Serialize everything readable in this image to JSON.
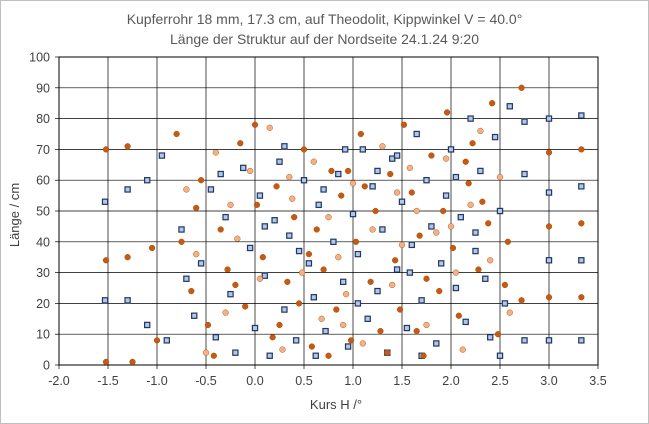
{
  "chart_data": {
    "type": "scatter",
    "title": "Kupferrohr 18 mm, 17.3 cm, auf Theodolit,  Kippwinkel V = 40.0°",
    "subtitle": "Länge der Struktur auf der Nordseite  24.1.24 9:20",
    "xlabel": "Kurs H /°",
    "ylabel": "Länge / cm",
    "xlim": [
      -2.0,
      3.5
    ],
    "ylim": [
      0,
      100
    ],
    "x_ticks": [
      "-2.0",
      "-1.5",
      "-1.0",
      "-0.5",
      "0.0",
      "0.5",
      "1.0",
      "1.5",
      "2.0",
      "2.5",
      "3.0",
      "3.5"
    ],
    "y_ticks": [
      "0",
      "10",
      "20",
      "30",
      "40",
      "50",
      "60",
      "70",
      "80",
      "90",
      "100"
    ],
    "grid": true,
    "legend": "none",
    "series": [
      {
        "marker": "square",
        "color": "#1f3864",
        "points": [
          [
            -1.53,
            53
          ],
          [
            -1.53,
            21
          ],
          [
            -1.3,
            57
          ],
          [
            -1.3,
            21
          ],
          [
            -1.1,
            60
          ],
          [
            -1.1,
            13
          ],
          [
            -0.95,
            68
          ],
          [
            -0.9,
            8
          ],
          [
            -0.75,
            44
          ],
          [
            -0.7,
            28
          ],
          [
            -0.62,
            16
          ],
          [
            -0.55,
            33
          ],
          [
            -0.45,
            57
          ],
          [
            -0.4,
            9
          ],
          [
            -0.3,
            48
          ],
          [
            -0.25,
            23
          ],
          [
            -0.2,
            4
          ],
          [
            -0.12,
            64
          ],
          [
            -0.05,
            38
          ],
          [
            0.0,
            12
          ],
          [
            0.05,
            55
          ],
          [
            0.1,
            29
          ],
          [
            0.15,
            3
          ],
          [
            0.2,
            47
          ],
          [
            0.25,
            66
          ],
          [
            0.3,
            18
          ],
          [
            0.35,
            42
          ],
          [
            0.42,
            8
          ],
          [
            0.5,
            60
          ],
          [
            0.55,
            33
          ],
          [
            0.6,
            22
          ],
          [
            0.65,
            52
          ],
          [
            0.72,
            11
          ],
          [
            0.8,
            40
          ],
          [
            0.85,
            62
          ],
          [
            0.9,
            27
          ],
          [
            0.95,
            6
          ],
          [
            1.0,
            49
          ],
          [
            1.05,
            36
          ],
          [
            1.1,
            70
          ],
          [
            1.15,
            15
          ],
          [
            1.2,
            58
          ],
          [
            1.25,
            24
          ],
          [
            1.3,
            44
          ],
          [
            1.35,
            4
          ],
          [
            1.4,
            67
          ],
          [
            1.45,
            31
          ],
          [
            1.5,
            53
          ],
          [
            1.55,
            12
          ],
          [
            1.6,
            39
          ],
          [
            1.65,
            75
          ],
          [
            1.7,
            21
          ],
          [
            1.75,
            60
          ],
          [
            1.8,
            45
          ],
          [
            1.85,
            7
          ],
          [
            1.9,
            33
          ],
          [
            1.95,
            55
          ],
          [
            2.0,
            70
          ],
          [
            2.05,
            25
          ],
          [
            2.1,
            48
          ],
          [
            2.15,
            14
          ],
          [
            2.2,
            80
          ],
          [
            2.25,
            37
          ],
          [
            2.3,
            63
          ],
          [
            2.35,
            28
          ],
          [
            2.4,
            9
          ],
          [
            2.45,
            74
          ],
          [
            2.5,
            50
          ],
          [
            2.55,
            20
          ],
          [
            2.6,
            84
          ],
          [
            2.75,
            79
          ],
          [
            2.75,
            62
          ],
          [
            2.75,
            8
          ],
          [
            3.0,
            80
          ],
          [
            3.0,
            56
          ],
          [
            3.0,
            34
          ],
          [
            3.0,
            8
          ],
          [
            3.33,
            81
          ],
          [
            3.33,
            58
          ],
          [
            3.33,
            34
          ],
          [
            3.33,
            8
          ],
          [
            0.3,
            71
          ],
          [
            0.45,
            37
          ],
          [
            0.7,
            57
          ],
          [
            1.05,
            20
          ],
          [
            1.45,
            68
          ],
          [
            1.7,
            3
          ],
          [
            2.25,
            43
          ],
          [
            2.5,
            3
          ],
          [
            1.25,
            63
          ],
          [
            0.1,
            45
          ],
          [
            -0.35,
            62
          ],
          [
            0.62,
            3
          ],
          [
            0.92,
            70
          ],
          [
            1.58,
            30
          ],
          [
            2.05,
            61
          ]
        ]
      },
      {
        "marker": "circle",
        "color": "#c55a11",
        "points": [
          [
            -1.52,
            70
          ],
          [
            -1.52,
            34
          ],
          [
            -1.52,
            1
          ],
          [
            -1.3,
            71
          ],
          [
            -1.3,
            35
          ],
          [
            -1.25,
            1
          ],
          [
            -1.05,
            38
          ],
          [
            -1.0,
            8
          ],
          [
            -0.8,
            75
          ],
          [
            -0.75,
            40
          ],
          [
            -0.65,
            24
          ],
          [
            -0.55,
            60
          ],
          [
            -0.48,
            13
          ],
          [
            -0.35,
            44
          ],
          [
            -0.28,
            31
          ],
          [
            -0.15,
            72
          ],
          [
            -0.1,
            19
          ],
          [
            0.02,
            52
          ],
          [
            0.08,
            35
          ],
          [
            0.18,
            9
          ],
          [
            0.22,
            58
          ],
          [
            0.33,
            27
          ],
          [
            0.4,
            48
          ],
          [
            0.45,
            20
          ],
          [
            0.5,
            70
          ],
          [
            0.58,
            6
          ],
          [
            0.63,
            44
          ],
          [
            0.7,
            31
          ],
          [
            0.78,
            63
          ],
          [
            0.83,
            18
          ],
          [
            0.88,
            55
          ],
          [
            0.98,
            8
          ],
          [
            1.03,
            40
          ],
          [
            1.08,
            75
          ],
          [
            1.18,
            27
          ],
          [
            1.23,
            50
          ],
          [
            1.28,
            11
          ],
          [
            1.38,
            62
          ],
          [
            1.43,
            34
          ],
          [
            1.48,
            18
          ],
          [
            1.6,
            56
          ],
          [
            1.68,
            42
          ],
          [
            1.72,
            3
          ],
          [
            1.8,
            68
          ],
          [
            1.88,
            24
          ],
          [
            1.92,
            50
          ],
          [
            2.02,
            38
          ],
          [
            2.08,
            16
          ],
          [
            2.18,
            59
          ],
          [
            2.22,
            72
          ],
          [
            2.28,
            31
          ],
          [
            2.38,
            46
          ],
          [
            2.42,
            85
          ],
          [
            2.48,
            10
          ],
          [
            2.58,
            40
          ],
          [
            2.72,
            90
          ],
          [
            2.72,
            21
          ],
          [
            3.0,
            69
          ],
          [
            3.0,
            45
          ],
          [
            3.0,
            22
          ],
          [
            3.33,
            70
          ],
          [
            3.33,
            46
          ],
          [
            3.33,
            22
          ],
          [
            -0.42,
            3
          ],
          [
            0.55,
            36
          ],
          [
            0.95,
            63
          ],
          [
            1.35,
            4
          ],
          [
            1.75,
            28
          ],
          [
            2.15,
            66
          ],
          [
            2.55,
            26
          ],
          [
            0.0,
            78
          ],
          [
            -0.6,
            51
          ],
          [
            0.25,
            13
          ],
          [
            1.12,
            58
          ],
          [
            1.52,
            78
          ],
          [
            1.96,
            82
          ],
          [
            2.32,
            53
          ],
          [
            0.75,
            3
          ],
          [
            -0.2,
            26
          ],
          [
            1.65,
            11
          ]
        ]
      },
      {
        "marker": "circle",
        "color": "#f4b183",
        "points": [
          [
            -0.7,
            57
          ],
          [
            -0.6,
            36
          ],
          [
            -0.5,
            4
          ],
          [
            -0.4,
            69
          ],
          [
            -0.3,
            17
          ],
          [
            -0.18,
            41
          ],
          [
            -0.05,
            63
          ],
          [
            0.05,
            28
          ],
          [
            0.15,
            77
          ],
          [
            0.28,
            5
          ],
          [
            0.38,
            54
          ],
          [
            0.48,
            30
          ],
          [
            0.6,
            66
          ],
          [
            0.68,
            15
          ],
          [
            0.75,
            48
          ],
          [
            0.85,
            35
          ],
          [
            0.93,
            23
          ],
          [
            1.0,
            59
          ],
          [
            1.1,
            7
          ],
          [
            1.2,
            44
          ],
          [
            1.3,
            71
          ],
          [
            1.4,
            26
          ],
          [
            1.5,
            39
          ],
          [
            1.58,
            64
          ],
          [
            1.65,
            50
          ],
          [
            1.75,
            13
          ],
          [
            1.85,
            43
          ],
          [
            1.95,
            67
          ],
          [
            2.05,
            30
          ],
          [
            2.12,
            5
          ],
          [
            2.2,
            52
          ],
          [
            2.3,
            76
          ],
          [
            2.4,
            34
          ],
          [
            2.5,
            61
          ],
          [
            2.6,
            17
          ],
          [
            0.35,
            61
          ],
          [
            0.9,
            13
          ],
          [
            1.45,
            56
          ],
          [
            2.0,
            45
          ],
          [
            -0.25,
            52
          ]
        ]
      }
    ]
  }
}
